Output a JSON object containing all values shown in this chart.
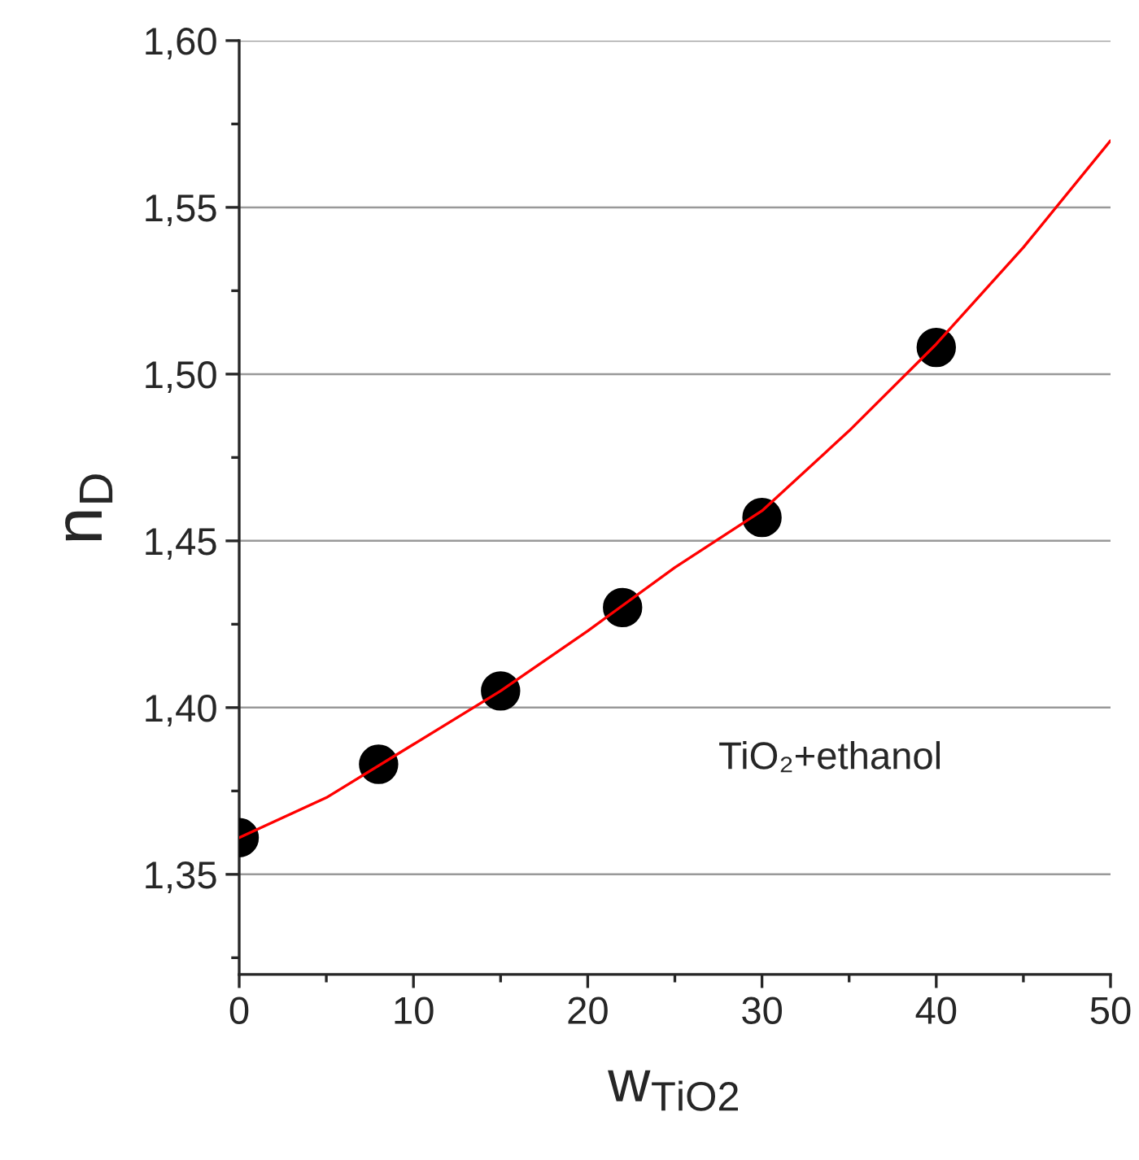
{
  "chart_data": {
    "type": "scatter",
    "xlabel": "w$_{TiO2}$",
    "ylabel": "n$_{D}$",
    "xlim": [
      0,
      50
    ],
    "xticks": [
      0,
      10,
      20,
      30,
      40,
      50
    ],
    "ylim": [
      1.32,
      1.6
    ],
    "yticks": [
      {
        "value": 1.35,
        "label": "1,35"
      },
      {
        "value": 1.4,
        "label": "1,40"
      },
      {
        "value": 1.45,
        "label": "1,45"
      },
      {
        "value": 1.5,
        "label": "1,50"
      },
      {
        "value": 1.55,
        "label": "1,55"
      },
      {
        "value": 1.6,
        "label": "1,60"
      }
    ],
    "grid": "y",
    "annotations": [
      "TiO₂+ethanol"
    ],
    "series": [
      {
        "color": "#000000",
        "marker": "circle",
        "x": [
          0,
          8,
          15,
          22,
          30,
          40
        ],
        "values": [
          1.361,
          1.383,
          1.405,
          1.43,
          1.457,
          1.508
        ]
      },
      {
        "type": "line",
        "color": "#ff0000",
        "x": [
          0,
          5,
          10,
          15,
          20,
          25,
          30,
          35,
          40,
          45,
          50
        ],
        "values": [
          1.361,
          1.373,
          1.389,
          1.405,
          1.423,
          1.442,
          1.459,
          1.483,
          1.509,
          1.538,
          1.57
        ]
      }
    ]
  }
}
